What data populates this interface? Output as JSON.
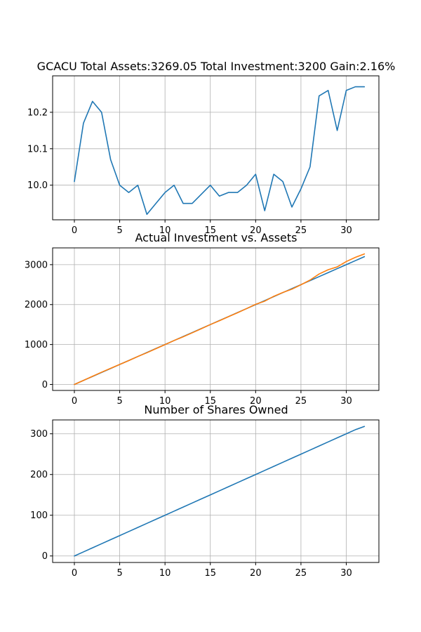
{
  "chart_data": [
    {
      "type": "line",
      "title": "GCACU Total Assets:3269.05  Total Investment:3200  Gain:2.16%",
      "xlabel": "",
      "ylabel": "",
      "xlim": [
        -2.4,
        33.6
      ],
      "ylim": [
        9.905,
        10.3
      ],
      "x_ticks": [
        0,
        5,
        10,
        15,
        20,
        25,
        30
      ],
      "y_ticks": [
        10.0,
        10.1,
        10.2
      ],
      "y_tick_labels": [
        "10.0",
        "10.1",
        "10.2"
      ],
      "grid": true,
      "series": [
        {
          "color": "#1f77b4",
          "x": [
            0,
            1,
            2,
            3,
            4,
            5,
            6,
            7,
            8,
            9,
            10,
            11,
            12,
            13,
            14,
            15,
            16,
            17,
            18,
            19,
            20,
            21,
            22,
            23,
            24,
            25,
            26,
            27,
            28,
            29,
            30,
            31,
            32
          ],
          "values": [
            10.01,
            10.17,
            10.23,
            10.2,
            10.07,
            10.0,
            9.98,
            10.0,
            9.92,
            9.95,
            9.98,
            10.0,
            9.95,
            9.95,
            9.975,
            10.0,
            9.97,
            9.98,
            9.98,
            10.0,
            10.03,
            9.93,
            10.03,
            10.01,
            9.94,
            9.99,
            10.05,
            10.245,
            10.26,
            10.15,
            10.26,
            10.27,
            10.27
          ]
        }
      ]
    },
    {
      "type": "line",
      "title": "Actual Investment vs. Assets",
      "xlabel": "",
      "ylabel": "",
      "xlim": [
        -2.4,
        33.6
      ],
      "ylim": [
        -150,
        3420
      ],
      "x_ticks": [
        0,
        5,
        10,
        15,
        20,
        25,
        30
      ],
      "y_ticks": [
        0,
        1000,
        2000,
        3000
      ],
      "y_tick_labels": [
        "0",
        "1000",
        "2000",
        "3000"
      ],
      "grid": true,
      "series": [
        {
          "color": "#1f77b4",
          "x": [
            0,
            1,
            2,
            3,
            4,
            5,
            6,
            7,
            8,
            9,
            10,
            11,
            12,
            13,
            14,
            15,
            16,
            17,
            18,
            19,
            20,
            21,
            22,
            23,
            24,
            25,
            26,
            27,
            28,
            29,
            30,
            31,
            32
          ],
          "values": [
            0,
            100,
            200,
            300,
            400,
            500,
            600,
            700,
            800,
            900,
            1000,
            1100,
            1200,
            1300,
            1400,
            1500,
            1600,
            1700,
            1800,
            1900,
            2000,
            2100,
            2200,
            2300,
            2400,
            2500,
            2600,
            2700,
            2800,
            2900,
            3000,
            3100,
            3200
          ]
        },
        {
          "color": "#ff7f0e",
          "x": [
            0,
            1,
            2,
            3,
            4,
            5,
            6,
            7,
            8,
            9,
            10,
            11,
            12,
            13,
            14,
            15,
            16,
            17,
            18,
            19,
            20,
            21,
            22,
            23,
            24,
            25,
            26,
            27,
            28,
            29,
            30,
            31,
            32
          ],
          "values": [
            0,
            101,
            204,
            306,
            404,
            500,
            598,
            700,
            794,
            896,
            998,
            1100,
            1194,
            1293,
            1396,
            1500,
            1595,
            1696,
            1796,
            1900,
            2006,
            2086,
            2207,
            2303,
            2386,
            2497,
            2613,
            2766,
            2873,
            2944,
            3078,
            3183,
            3269
          ]
        }
      ]
    },
    {
      "type": "line",
      "title": "Number of Shares Owned",
      "xlabel": "",
      "ylabel": "",
      "xlim": [
        -2.4,
        33.6
      ],
      "ylim": [
        -16,
        334
      ],
      "x_ticks": [
        0,
        5,
        10,
        15,
        20,
        25,
        30
      ],
      "y_ticks": [
        0,
        100,
        200,
        300
      ],
      "y_tick_labels": [
        "0",
        "100",
        "200",
        "300"
      ],
      "grid": true,
      "series": [
        {
          "color": "#1f77b4",
          "x": [
            0,
            1,
            2,
            3,
            4,
            5,
            6,
            7,
            8,
            9,
            10,
            11,
            12,
            13,
            14,
            15,
            16,
            17,
            18,
            19,
            20,
            21,
            22,
            23,
            24,
            25,
            26,
            27,
            28,
            29,
            30,
            31,
            32
          ],
          "values": [
            0,
            10,
            20,
            30,
            40,
            50,
            60,
            70,
            80,
            90,
            100,
            110,
            120,
            130,
            140,
            150,
            160,
            170,
            180,
            190,
            200,
            210,
            220,
            230,
            240,
            250,
            260,
            270,
            280,
            290,
            300,
            310,
            318
          ]
        }
      ]
    }
  ]
}
